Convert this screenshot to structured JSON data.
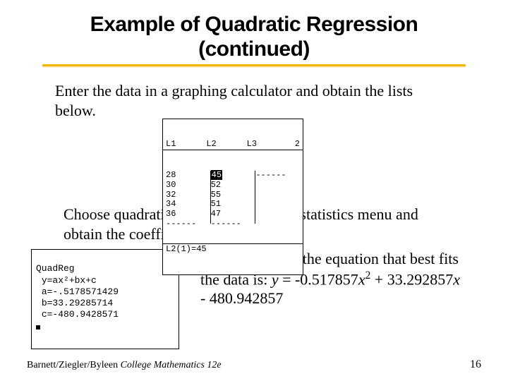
{
  "title_line1": "Example of Quadratic Regression",
  "title_line2": "(continued)",
  "intro1": "Enter the data in a graphing calculator and obtain the lists below.",
  "calc1": {
    "headers": [
      "L1",
      "L2",
      "L3",
      "2"
    ],
    "L1": [
      "28",
      "30",
      "32",
      "34",
      "36",
      "------"
    ],
    "L2_hl": "45",
    "L2_rest": [
      "52",
      "55",
      "51",
      "47",
      "------"
    ],
    "L3": [
      "------"
    ],
    "status": "L2(1)=45"
  },
  "intro2": "Choose quadratic regression from the statistics menu and obtain the coefficients as shown:",
  "calc2": {
    "title": "QuadReg",
    "eq": "y=ax²+bx+c",
    "a": "a=-.5178571429",
    "b": "b=33.29285714",
    "c": "c=-480.9428571"
  },
  "explain_pre": "This means that the equation that best fits the data is: ",
  "eq_y": "y",
  "eq_eq": " = -0.517857",
  "eq_x": "x",
  "eq_mid": " + 33.292857",
  "eq_end": " - 480.942857",
  "footer_author": "Barnett/Ziegler/Byleen ",
  "footer_book": "College Mathematics 12e",
  "page_num": "16",
  "colors": {
    "underline": "#f2b800",
    "text": "#000000",
    "bg": "#ffffff"
  }
}
